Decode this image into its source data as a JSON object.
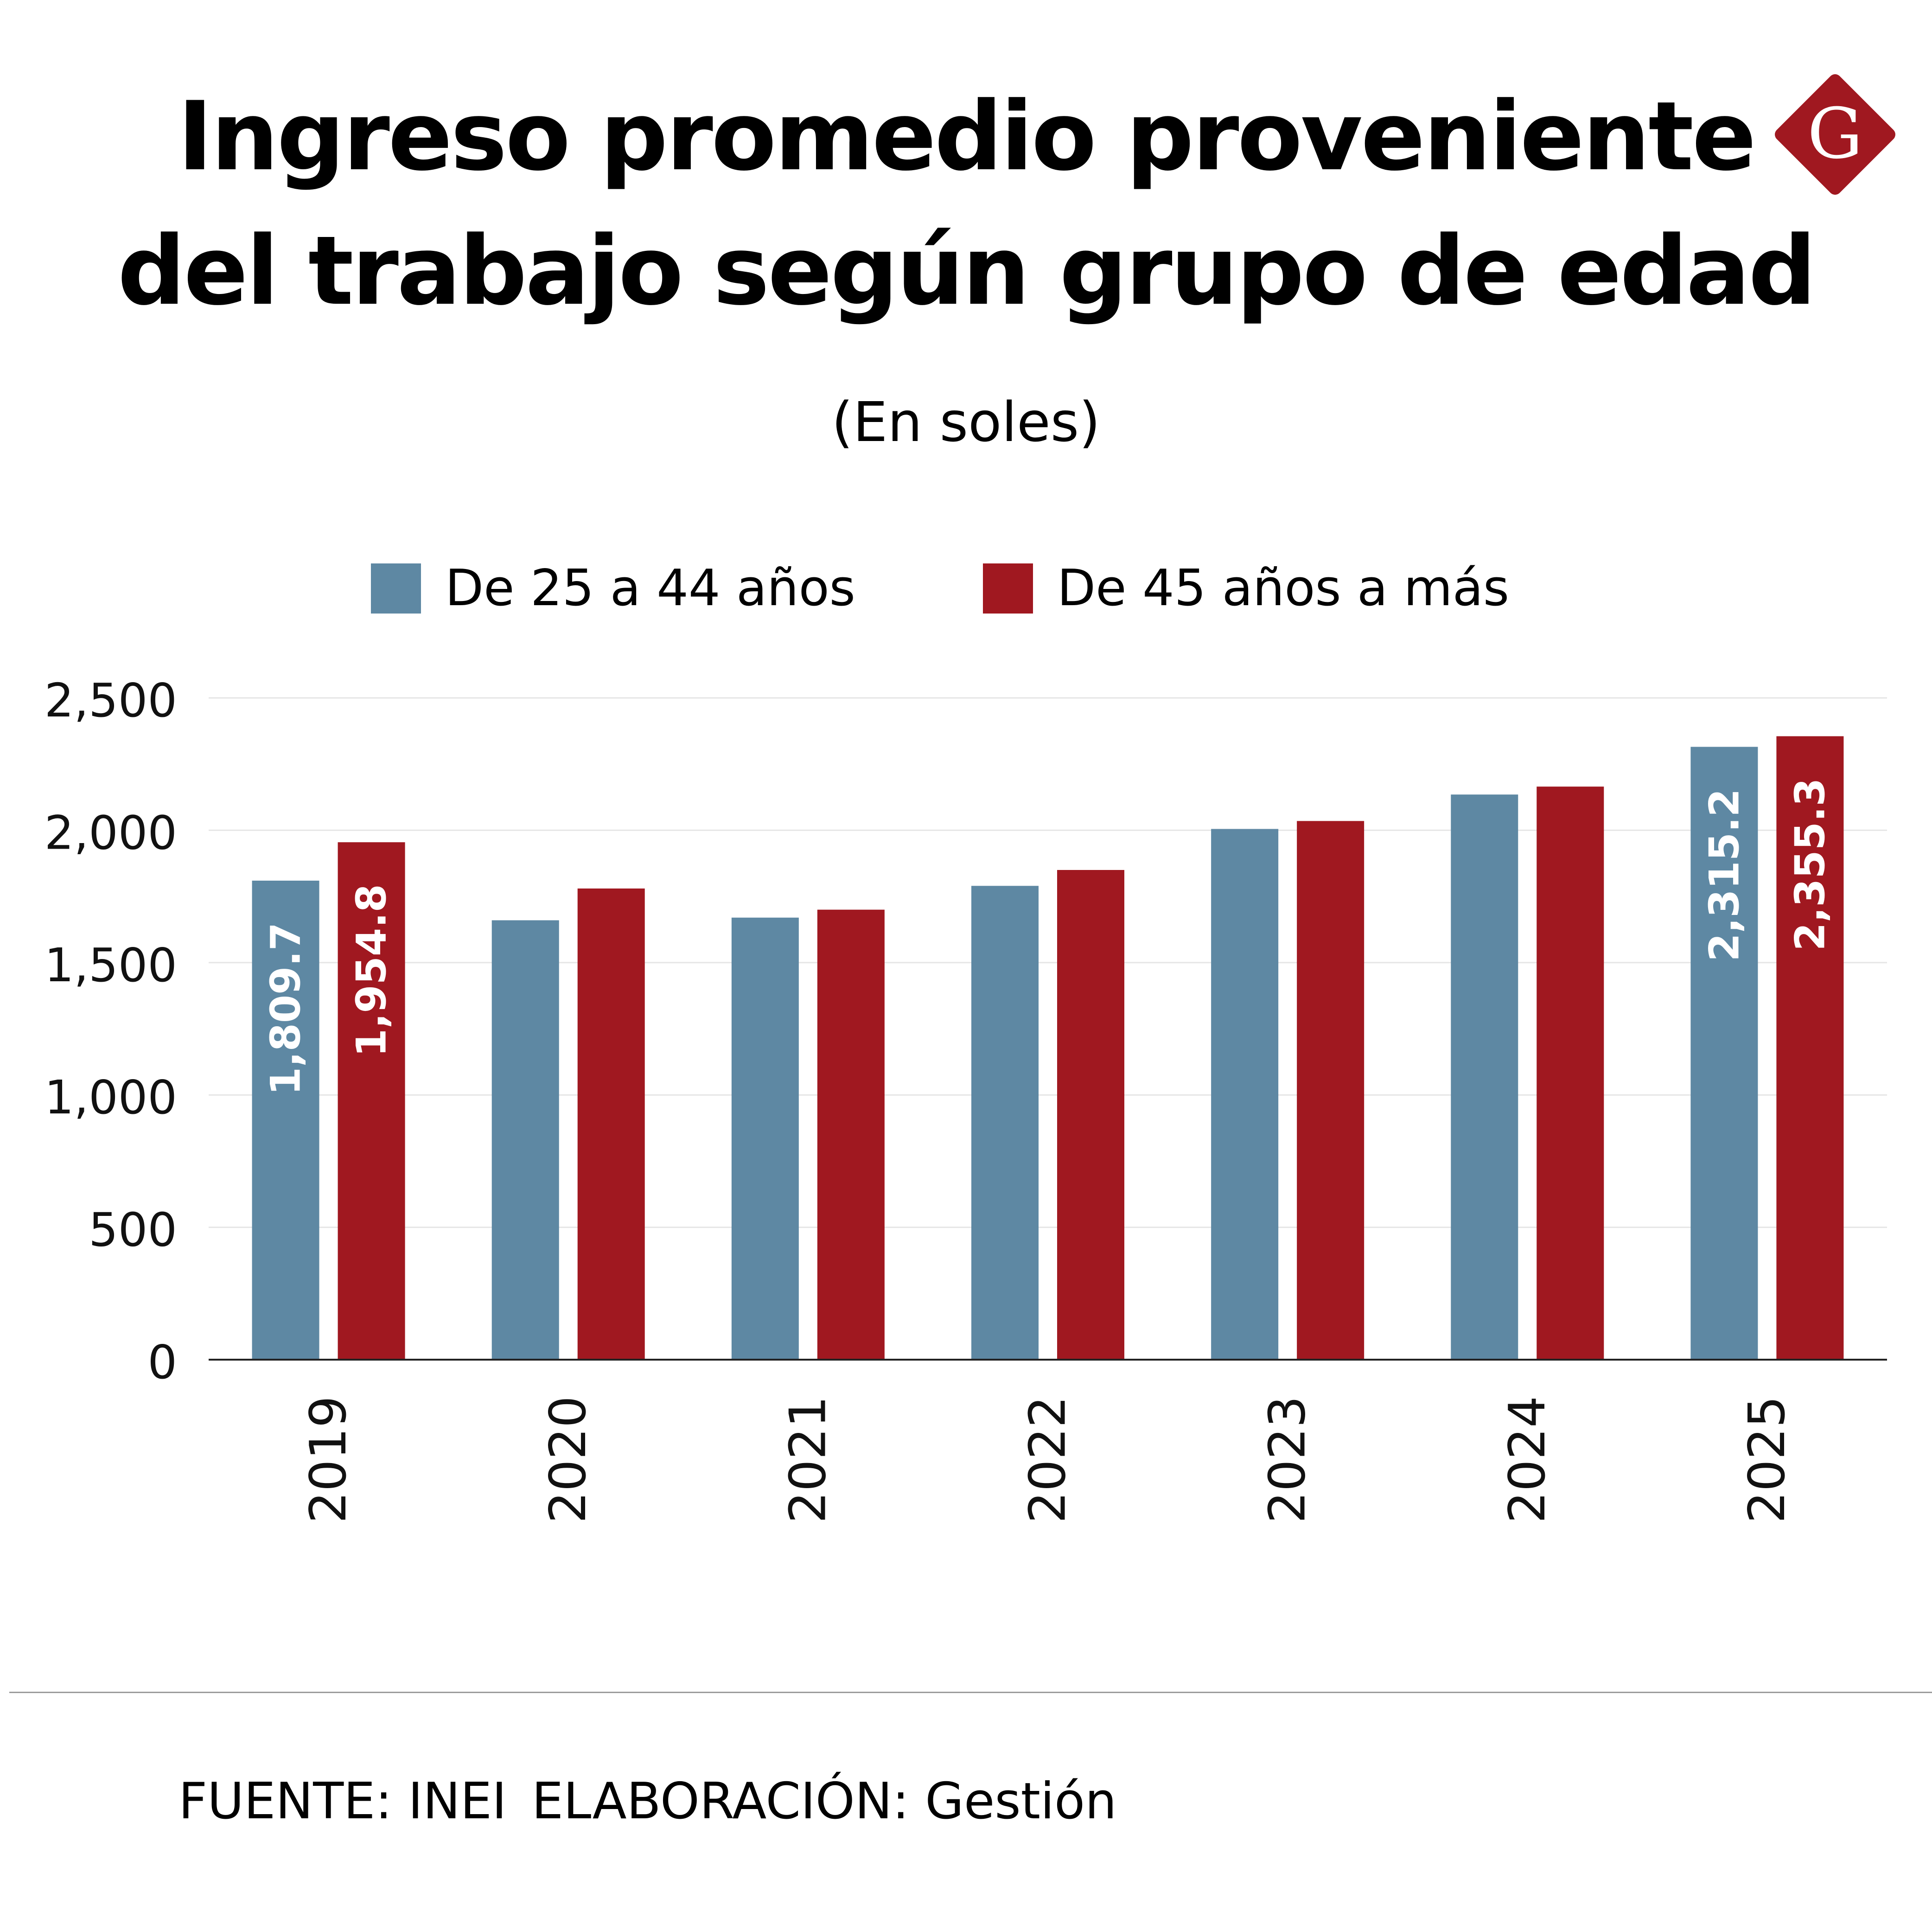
{
  "header": {
    "title_line1": "Ingreso promedio proveniente",
    "title_line2": "del trabajo según grupo de edad",
    "subtitle": "(En soles)",
    "logo_letter": "G"
  },
  "legend": {
    "items": [
      {
        "label": "De 25 a 44 años",
        "color": "#5e88a3"
      },
      {
        "label": "De 45 años a más",
        "color": "#a01820"
      }
    ]
  },
  "footer": {
    "source": "FUENTE: INEI",
    "credit": "ELABORACIÓN: Gestión"
  },
  "colors": {
    "series_a": "#5e88a3",
    "series_b": "#a01820",
    "logo": "#a01820",
    "grid": "#e6e6e6"
  },
  "chart_data": {
    "type": "bar",
    "title": "Ingreso promedio proveniente del trabajo según grupo de edad",
    "subtitle": "(En soles)",
    "xlabel": "",
    "ylabel": "",
    "ylim": [
      0,
      2500
    ],
    "yticks": [
      0,
      500,
      1000,
      1500,
      2000,
      2500
    ],
    "ytick_labels": [
      "0",
      "500",
      "1,000",
      "1,500",
      "2,000",
      "2,500"
    ],
    "categories": [
      "2019",
      "2020",
      "2021",
      "2022",
      "2023",
      "2024",
      "2025"
    ],
    "legend_position": "top",
    "grid": true,
    "series": [
      {
        "name": "De 25 a 44 años",
        "values": [
          1809.7,
          1660,
          1670,
          1790,
          2005,
          2135,
          2315.2
        ],
        "labels": [
          "1,809.7",
          "",
          "",
          "",
          "",
          "",
          "2,315.2"
        ]
      },
      {
        "name": "De 45 años a más",
        "values": [
          1954.8,
          1780,
          1700,
          1850,
          2035,
          2165,
          2355.3
        ],
        "labels": [
          "1,954.8",
          "",
          "",
          "",
          "",
          "",
          "2,355.3"
        ]
      }
    ]
  }
}
